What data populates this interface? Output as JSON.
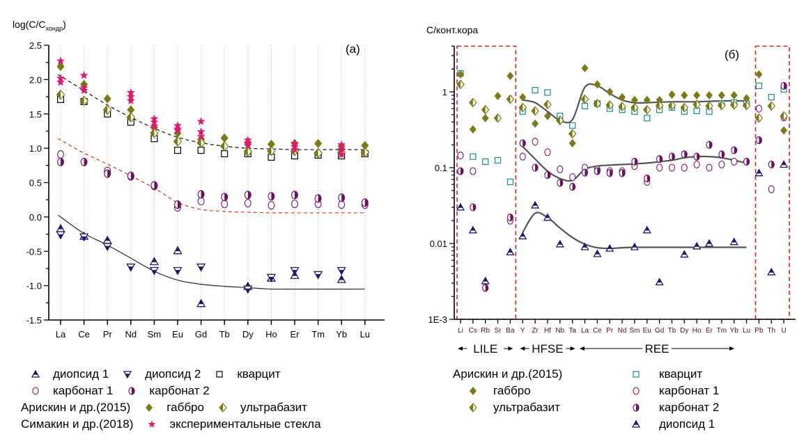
{
  "chart_data": [
    {
      "id": "a",
      "type": "scatter",
      "panel_label": "(a)",
      "ylabel": "log(C/C",
      "ylabel_sub": "хондр",
      "ylabel_close": ")",
      "xlabel": "",
      "ylim": [
        -1.5,
        2.5
      ],
      "yticks": [
        "2.5",
        "2.0",
        "1.5",
        "1.0",
        "0.5",
        "0.0",
        "-0.5",
        "-1.0",
        "-1.5"
      ],
      "ytick_values": [
        2.5,
        2.0,
        1.5,
        1.0,
        0.5,
        0.0,
        -0.5,
        -1.0,
        -1.5
      ],
      "categories": [
        "La",
        "Ce",
        "Pr",
        "Nd",
        "Sm",
        "Eu",
        "Gd",
        "Tb",
        "Dy",
        "Ho",
        "Er",
        "Tm",
        "Yb",
        "Lu"
      ],
      "grid": "vertical-dotted",
      "series": [
        {
          "name": "диопсид 1",
          "marker": "triangle-up",
          "color": "#1f1a6b",
          "values": [
            -0.17,
            -0.28,
            -0.34,
            null,
            -0.65,
            -0.49,
            -1.26,
            null,
            -1.01,
            -0.89,
            -0.85,
            null,
            -0.91,
            null
          ]
        },
        {
          "name": "диопсид 2",
          "marker": "triangle-down",
          "color": "#1f1a6b",
          "values": [
            -0.26,
            -0.29,
            -0.43,
            -0.73,
            -0.78,
            -0.78,
            -0.73,
            null,
            -1.05,
            -0.88,
            -0.78,
            -0.84,
            -0.78,
            null
          ]
        },
        {
          "name": "кварцит",
          "marker": "square-open",
          "color": "#000000",
          "values": [
            1.71,
            1.68,
            1.5,
            1.38,
            1.14,
            0.97,
            0.97,
            0.92,
            0.92,
            0.87,
            0.89,
            0.9,
            0.89,
            0.92
          ]
        },
        {
          "name": "карбонат 1",
          "marker": "circle-open",
          "color": "#7a1a6e",
          "values": [
            0.91,
            null,
            0.67,
            0.59,
            0.45,
            0.14,
            0.23,
            0.19,
            0.2,
            0.17,
            0.19,
            0.19,
            0.18,
            0.18
          ]
        },
        {
          "name": "карбонат 2",
          "marker": "circle-half",
          "color": "#6b0f5e",
          "values": [
            0.8,
            0.8,
            0.63,
            0.6,
            0.46,
            0.18,
            0.33,
            0.29,
            0.32,
            0.3,
            0.32,
            0.27,
            0.28,
            0.21
          ]
        },
        {
          "name": "габбро",
          "group": "Арискин и др.(2015)",
          "marker": "diamond",
          "color": "#7c7a14",
          "values": [
            2.19,
            1.93,
            1.72,
            1.56,
            1.3,
            1.22,
            1.13,
            1.15,
            1.08,
            1.06,
            1.07,
            1.07,
            1.03,
            1.04
          ]
        },
        {
          "name": "ультрабазит",
          "group": "Арискин и др.(2015)",
          "marker": "diamond-half",
          "color": "#7c7a14",
          "values": [
            1.78,
            1.69,
            1.56,
            1.45,
            1.22,
            1.1,
            1.08,
            1.03,
            0.95,
            0.96,
            0.96,
            0.93,
            0.94,
            0.94
          ]
        },
        {
          "name": "экспериментальные стекла",
          "group": "Симакин и др.(2018)",
          "marker": "star",
          "color": "#e0186e",
          "points": [
            [
              "La",
              2.27
            ],
            [
              "La",
              2.02
            ],
            [
              "La",
              1.96
            ],
            [
              "Ce",
              2.06
            ],
            [
              "Ce",
              1.88
            ],
            [
              "Ce",
              1.84
            ],
            [
              "Nd",
              1.81
            ],
            [
              "Nd",
              1.75
            ],
            [
              "Nd",
              1.69
            ],
            [
              "Sm",
              1.43
            ],
            [
              "Sm",
              1.38
            ],
            [
              "Sm",
              1.32
            ],
            [
              "Eu",
              1.33
            ],
            [
              "Eu",
              1.28
            ],
            [
              "Eu",
              1.26
            ],
            [
              "Gd",
              1.39
            ],
            [
              "Gd",
              1.24
            ],
            [
              "Gd",
              1.17
            ],
            [
              "Dy",
              1.12
            ],
            [
              "Dy",
              1.08
            ],
            [
              "Dy",
              1.04
            ],
            [
              "Er",
              1.07
            ],
            [
              "Er",
              1.02
            ],
            [
              "Er",
              0.98
            ],
            [
              "Yb",
              1.05
            ],
            [
              "Yb",
              0.98
            ],
            [
              "Yb",
              0.91
            ]
          ]
        }
      ],
      "trend_lines": [
        {
          "name": "trend-upper",
          "style": "dashed",
          "color": "#111111",
          "values": [
            2.05,
            1.84,
            1.63,
            1.45,
            1.29,
            1.16,
            1.08,
            1.03,
            1.0,
            0.99,
            0.98,
            0.98,
            0.98,
            0.98
          ]
        },
        {
          "name": "trend-carbonate",
          "style": "dashed",
          "color": "#e0301c",
          "values": [
            1.12,
            0.93,
            0.77,
            0.6,
            0.42,
            0.21,
            0.11,
            0.08,
            0.07,
            0.06,
            0.06,
            0.06,
            0.06,
            0.06
          ]
        },
        {
          "name": "trend-diopside",
          "style": "solid",
          "color": "#222222",
          "values": [
            0.0,
            -0.24,
            -0.41,
            -0.6,
            -0.79,
            -0.92,
            -0.98,
            -1.01,
            -1.03,
            -1.05,
            -1.05,
            -1.05,
            -1.05,
            -1.05
          ]
        }
      ],
      "legend": [
        [
          {
            "marker": "triangle-up",
            "color": "#1f1a6b",
            "label": "диопсид 1"
          },
          {
            "marker": "triangle-down",
            "color": "#1f1a6b",
            "label": "диопсид 2"
          },
          {
            "marker": "square-open",
            "color": "#000000",
            "label": "кварцит"
          }
        ],
        [
          {
            "marker": "circle-open",
            "color": "#7a1a6e",
            "label": "карбонат 1"
          },
          {
            "marker": "circle-half",
            "color": "#6b0f5e",
            "label": "карбонат 2"
          }
        ],
        [
          {
            "text": "Арискин и др.(2015)"
          },
          {
            "marker": "diamond",
            "color": "#7c7a14",
            "label": "габбро"
          },
          {
            "marker": "diamond-half",
            "color": "#7c7a14",
            "label": "ультрабазит"
          }
        ],
        [
          {
            "text": "Симакин и др.(2018)"
          },
          {
            "marker": "star",
            "color": "#e0186e",
            "label": "экспериментальные стекла"
          }
        ]
      ]
    },
    {
      "id": "b",
      "type": "scatter",
      "panel_label": "(б)",
      "ylabel": "C/конт.кора",
      "xlabel": "",
      "yscale": "log",
      "ylim": [
        0.001,
        4
      ],
      "yticks": [
        "1",
        "0.1",
        "0.01",
        "1E-3"
      ],
      "ytick_values": [
        1,
        0.1,
        0.01,
        0.001
      ],
      "categories": [
        "Li",
        "Cs",
        "Rb",
        "Sr",
        "Ba",
        "Y",
        "Zr",
        "Hf",
        "Nb",
        "Ta",
        "La",
        "Ce",
        "Pr",
        "Nd",
        "Sm",
        "Eu",
        "Gd",
        "Tb",
        "Dy",
        "Ho",
        "Er",
        "Tm",
        "Yb",
        "Lu",
        "Pb",
        "Th",
        "U"
      ],
      "groups": [
        {
          "label": "LILE",
          "from": "Li",
          "to": "Ba",
          "boxed": true
        },
        {
          "label": "HFSE",
          "from": "Y",
          "to": "Ta"
        },
        {
          "label": "REE",
          "from": "La",
          "to": "Lu"
        },
        {
          "label": "",
          "from": "Pb",
          "to": "U",
          "boxed": true
        }
      ],
      "series": [
        {
          "name": "кварцит",
          "marker": "square-open",
          "color": "#1a8a8a",
          "values": [
            1.75,
            0.14,
            0.12,
            0.125,
            0.065,
            0.55,
            1.05,
            0.98,
            0.48,
            0.36,
            0.65,
            0.7,
            0.6,
            0.58,
            0.55,
            0.45,
            0.58,
            0.62,
            0.55,
            0.56,
            0.55,
            0.7,
            0.72,
            0.7,
            1.2,
            0.85,
            1.08
          ]
        },
        {
          "name": "карбонат 1",
          "marker": "circle-open",
          "color": "#7a1a6e",
          "values": [
            0.145,
            0.09,
            0.0026,
            null,
            0.02,
            0.14,
            0.22,
            0.16,
            0.095,
            0.075,
            0.1,
            0.095,
            0.09,
            0.09,
            0.105,
            0.065,
            0.1,
            0.1,
            0.1,
            0.11,
            0.1,
            0.11,
            0.12,
            0.12,
            0.6,
            0.052,
            0.46
          ]
        },
        {
          "name": "карбонат 2",
          "marker": "circle-half",
          "color": "#6b0f5e",
          "values": [
            0.09,
            0.03,
            0.0026,
            null,
            0.022,
            0.21,
            0.1,
            0.08,
            0.063,
            0.056,
            0.086,
            0.09,
            0.085,
            0.085,
            0.12,
            0.072,
            0.13,
            0.14,
            0.15,
            0.14,
            0.2,
            0.15,
            0.17,
            0.12,
            0.23,
            0.11,
            1.2
          ]
        },
        {
          "name": "габбро",
          "marker": "diamond",
          "color": "#7c7a14",
          "values": [
            1.7,
            0.32,
            0.45,
            0.88,
            1.62,
            0.85,
            0.38,
            0.48,
            0.41,
            0.21,
            2.05,
            1.25,
            1.0,
            0.85,
            0.78,
            0.78,
            0.78,
            0.92,
            0.9,
            0.9,
            0.9,
            0.9,
            0.9,
            0.82,
            1.7,
            0.65,
            0.31
          ]
        },
        {
          "name": "ультрабазит",
          "marker": "diamond-half",
          "color": "#7c7a14",
          "values": [
            1.25,
            0.72,
            0.58,
            0.45,
            0.8,
            0.62,
            0.56,
            0.68,
            0.42,
            0.28,
            0.8,
            0.7,
            0.67,
            0.64,
            0.62,
            0.58,
            0.66,
            0.66,
            0.62,
            0.68,
            0.65,
            0.66,
            0.67,
            0.66,
            0.45,
            0.65,
            0.48
          ]
        },
        {
          "name": "диопсид 1",
          "marker": "triangle-up",
          "color": "#1f1a6b",
          "values": [
            0.03,
            0.015,
            0.0032,
            null,
            0.0077,
            0.0125,
            0.032,
            0.022,
            0.0098,
            null,
            0.009,
            0.0073,
            0.0086,
            null,
            0.009,
            0.015,
            0.0031,
            null,
            0.0072,
            0.0092,
            0.01,
            null,
            0.0105,
            null,
            0.085,
            0.0042,
            0.11
          ]
        }
      ],
      "trend_lines": [
        {
          "name": "trend-upper",
          "style": "solid",
          "color": "#555555",
          "values": [
            null,
            null,
            null,
            null,
            null,
            0.78,
            0.72,
            0.55,
            0.42,
            0.43,
            1.15,
            1.2,
            0.95,
            0.78,
            0.72,
            0.72,
            0.73,
            0.74,
            0.74,
            0.74,
            0.75,
            0.76,
            0.76,
            0.76,
            null,
            null,
            null
          ]
        },
        {
          "name": "trend-middle",
          "style": "solid",
          "color": "#555555",
          "values": [
            null,
            null,
            null,
            null,
            null,
            0.19,
            0.13,
            0.09,
            0.072,
            0.068,
            0.095,
            0.105,
            0.108,
            0.11,
            0.112,
            0.115,
            0.12,
            0.125,
            0.135,
            0.14,
            0.14,
            0.135,
            0.125,
            0.115,
            null,
            null,
            null
          ]
        },
        {
          "name": "trend-lower",
          "style": "solid",
          "color": "#555555",
          "values": [
            null,
            null,
            null,
            null,
            null,
            0.014,
            0.025,
            0.022,
            0.016,
            0.012,
            0.0098,
            0.0088,
            0.0086,
            0.0088,
            0.0089,
            0.0089,
            0.0089,
            0.0089,
            0.0089,
            0.0089,
            0.0089,
            0.0089,
            0.0089,
            0.0089,
            null,
            null,
            null
          ]
        }
      ],
      "legend_left": [
        {
          "text": "Арискин и др.(2015)"
        },
        {
          "marker": "diamond",
          "color": "#7c7a14",
          "label": "габбро"
        },
        {
          "marker": "diamond-half",
          "color": "#7c7a14",
          "label": "ультрабазит"
        }
      ],
      "legend_right": [
        {
          "marker": "square-open",
          "color": "#1a8a8a",
          "label": "кварцит"
        },
        {
          "marker": "circle-open",
          "color": "#7a1a6e",
          "label": "карбонат 1"
        },
        {
          "marker": "circle-half",
          "color": "#6b0f5e",
          "label": "карбонат 2"
        },
        {
          "marker": "triangle-up",
          "color": "#1f1a6b",
          "label": "диопсид 1"
        }
      ],
      "box_color": "#e02020",
      "label_color": "#5a1010"
    }
  ]
}
